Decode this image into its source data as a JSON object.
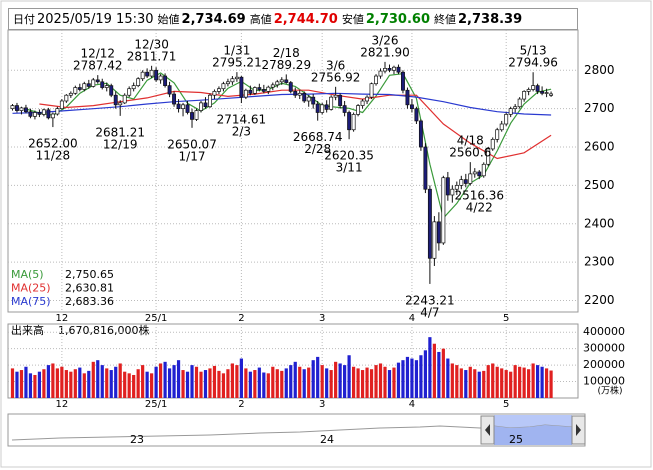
{
  "header": {
    "date_label": "日付",
    "date": "2025/05/19 15:30",
    "fields": [
      {
        "label": "始値",
        "value": "2,734.69",
        "color": "#000000"
      },
      {
        "label": "高値",
        "value": "2,744.70",
        "color": "#e00000"
      },
      {
        "label": "安値",
        "value": "2,730.60",
        "color": "#008000"
      },
      {
        "label": "終値",
        "value": "2,738.39",
        "color": "#000000"
      }
    ]
  },
  "chart_data": {
    "type": "candlestick",
    "xlim": [
      -1,
      126
    ],
    "xticks": [
      {
        "value": 11,
        "label": "12"
      },
      {
        "value": 32,
        "label": "25/1"
      },
      {
        "value": 51,
        "label": "2"
      },
      {
        "value": 69,
        "label": "3"
      },
      {
        "value": 89,
        "label": "4"
      },
      {
        "value": 110,
        "label": "5"
      }
    ],
    "ylim": [
      2170,
      2905
    ],
    "yticks": [
      2200,
      2300,
      2400,
      2500,
      2600,
      2700,
      2800
    ],
    "grid": true,
    "up_color": "#ffffff",
    "down_color": "#1c1c78",
    "open": [
      2700,
      2708,
      2695,
      2702,
      2692,
      2680,
      2690,
      2685,
      2697,
      2676,
      2686,
      2700,
      2720,
      2735,
      2740,
      2755,
      2750,
      2765,
      2758,
      2775,
      2770,
      2755,
      2760,
      2735,
      2710,
      2715,
      2735,
      2752,
      2760,
      2778,
      2795,
      2785,
      2800,
      2775,
      2785,
      2760,
      2738,
      2712,
      2700,
      2710,
      2690,
      2672,
      2695,
      2715,
      2705,
      2735,
      2745,
      2752,
      2765,
      2770,
      2778,
      2782,
      2730,
      2748,
      2740,
      2755,
      2750,
      2745,
      2756,
      2762,
      2770,
      2775,
      2768,
      2745,
      2735,
      2740,
      2720,
      2730,
      2712,
      2690,
      2710,
      2698,
      2730,
      2735,
      2708,
      2690,
      2645,
      2685,
      2708,
      2720,
      2730,
      2765,
      2785,
      2798,
      2805,
      2800,
      2808,
      2795,
      2748,
      2710,
      2700,
      2668,
      2600,
      2490,
      2310,
      2405,
      2350,
      2520,
      2475,
      2490,
      2500,
      2515,
      2505,
      2530,
      2535,
      2525,
      2555,
      2595,
      2620,
      2645,
      2660,
      2685,
      2700,
      2705,
      2725,
      2745,
      2750,
      2760,
      2745,
      2740,
      2734.69
    ],
    "high": [
      2712,
      2715,
      2705,
      2710,
      2700,
      2695,
      2698,
      2700,
      2702,
      2690,
      2705,
      2725,
      2738,
      2745,
      2760,
      2765,
      2770,
      2775,
      2780,
      2787.42,
      2778,
      2768,
      2765,
      2745,
      2722,
      2740,
      2758,
      2768,
      2782,
      2800,
      2805,
      2811.71,
      2808,
      2790,
      2792,
      2770,
      2745,
      2725,
      2715,
      2720,
      2700,
      2700,
      2720,
      2730,
      2740,
      2750,
      2758,
      2770,
      2778,
      2785,
      2795.21,
      2785,
      2752,
      2760,
      2758,
      2765,
      2762,
      2760,
      2768,
      2775,
      2782,
      2789.29,
      2772,
      2755,
      2748,
      2745,
      2735,
      2738,
      2720,
      2715,
      2722,
      2735,
      2756.92,
      2740,
      2720,
      2695,
      2690,
      2712,
      2725,
      2735,
      2768,
      2790,
      2805,
      2821.9,
      2815,
      2812,
      2815,
      2800,
      2755,
      2725,
      2705,
      2672,
      2610,
      2500,
      2420,
      2430,
      2525,
      2535,
      2500,
      2510,
      2525,
      2530,
      2560.6,
      2545,
      2540,
      2560,
      2600,
      2625,
      2650,
      2668,
      2690,
      2705,
      2712,
      2730,
      2748,
      2755,
      2794.96,
      2765,
      2758,
      2752,
      2744.7
    ],
    "low": [
      2695,
      2690,
      2685,
      2688,
      2675,
      2672,
      2678,
      2680,
      2672,
      2652,
      2682,
      2698,
      2715,
      2728,
      2736,
      2745,
      2745,
      2752,
      2755,
      2765,
      2750,
      2745,
      2730,
      2700,
      2681.21,
      2712,
      2730,
      2745,
      2756,
      2772,
      2780,
      2780,
      2770,
      2765,
      2755,
      2730,
      2705,
      2690,
      2680,
      2685,
      2650.07,
      2668,
      2690,
      2700,
      2702,
      2725,
      2738,
      2745,
      2758,
      2762,
      2770,
      2714.61,
      2725,
      2735,
      2736,
      2745,
      2740,
      2738,
      2748,
      2755,
      2762,
      2765,
      2740,
      2728,
      2725,
      2715,
      2705,
      2700,
      2668.74,
      2685,
      2690,
      2695,
      2722,
      2700,
      2680,
      2620.35,
      2640,
      2680,
      2700,
      2712,
      2725,
      2760,
      2778,
      2792,
      2795,
      2790,
      2790,
      2740,
      2700,
      2690,
      2660,
      2590,
      2480,
      2243.21,
      2290,
      2330,
      2345,
      2460,
      2455,
      2475,
      2490,
      2495,
      2500,
      2520,
      2516.36,
      2520,
      2550,
      2590,
      2612,
      2640,
      2655,
      2678,
      2690,
      2700,
      2718,
      2735,
      2745,
      2738,
      2735,
      2730,
      2730.6
    ],
    "close": [
      2708,
      2695,
      2702,
      2692,
      2680,
      2690,
      2685,
      2697,
      2676,
      2686,
      2700,
      2720,
      2735,
      2740,
      2755,
      2750,
      2765,
      2758,
      2775,
      2770,
      2755,
      2760,
      2735,
      2710,
      2715,
      2735,
      2752,
      2760,
      2778,
      2795,
      2785,
      2800,
      2775,
      2785,
      2760,
      2738,
      2712,
      2700,
      2710,
      2690,
      2672,
      2695,
      2715,
      2705,
      2735,
      2745,
      2752,
      2765,
      2770,
      2778,
      2782,
      2730,
      2748,
      2740,
      2755,
      2750,
      2745,
      2756,
      2762,
      2770,
      2775,
      2768,
      2745,
      2735,
      2740,
      2720,
      2730,
      2712,
      2690,
      2710,
      2698,
      2730,
      2735,
      2708,
      2690,
      2645,
      2685,
      2708,
      2720,
      2730,
      2765,
      2785,
      2798,
      2805,
      2800,
      2808,
      2795,
      2748,
      2710,
      2700,
      2668,
      2600,
      2490,
      2310,
      2405,
      2350,
      2520,
      2475,
      2490,
      2500,
      2515,
      2505,
      2530,
      2535,
      2525,
      2555,
      2595,
      2620,
      2645,
      2660,
      2685,
      2700,
      2705,
      2725,
      2745,
      2750,
      2760,
      2745,
      2740,
      2742,
      2738.39
    ],
    "series": [
      {
        "name": "MA(5)",
        "legend_value": "2,750.65",
        "color": "#3a9a3a",
        "x": [
          3,
          6,
          9,
          12,
          15,
          18,
          21,
          24,
          27,
          30,
          33,
          36,
          39,
          42,
          45,
          48,
          51,
          54,
          57,
          60,
          63,
          66,
          69,
          72,
          75,
          78,
          81,
          84,
          87,
          90,
          93,
          96,
          99,
          102,
          105,
          108,
          111,
          114,
          117,
          120
        ],
        "values": [
          2699,
          2689,
          2683,
          2704,
          2740,
          2761,
          2766,
          2735,
          2725,
          2774,
          2793,
          2767,
          2714,
          2694,
          2715,
          2753,
          2771,
          2747,
          2750,
          2766,
          2758,
          2734,
          2708,
          2704,
          2701,
          2690,
          2733,
          2787,
          2791,
          2727,
          2555,
          2415,
          2453,
          2506,
          2527,
          2590,
          2662,
          2712,
          2743,
          2750.65
        ]
      },
      {
        "name": "MA(25)",
        "legend_value": "2,630.81",
        "color": "#e03030",
        "x": [
          6,
          12,
          18,
          24,
          30,
          36,
          42,
          48,
          54,
          60,
          66,
          72,
          78,
          84,
          90,
          96,
          102,
          108,
          114,
          120
        ],
        "values": [
          2712,
          2703,
          2708,
          2718,
          2728,
          2745,
          2742,
          2732,
          2738,
          2748,
          2748,
          2735,
          2725,
          2735,
          2735,
          2660,
          2610,
          2570,
          2585,
          2630.81
        ]
      },
      {
        "name": "MA(75)",
        "legend_value": "2,683.36",
        "color": "#2a3ad0",
        "x": [
          0,
          6,
          12,
          18,
          24,
          30,
          36,
          42,
          48,
          54,
          60,
          66,
          72,
          78,
          84,
          90,
          96,
          102,
          108,
          114,
          120
        ],
        "values": [
          2688,
          2690,
          2695,
          2700,
          2705,
          2712,
          2718,
          2722,
          2727,
          2732,
          2737,
          2738,
          2740,
          2738,
          2737,
          2730,
          2718,
          2703,
          2692,
          2686,
          2683.36
        ]
      }
    ],
    "annotations": [
      {
        "x": 9,
        "date": "11/28",
        "value": 2652,
        "label": "2652.00"
      },
      {
        "x": 19,
        "date": "12/12",
        "value": 2787.42
      },
      {
        "x": 24,
        "date": "12/19",
        "value": 2681.21
      },
      {
        "x": 31,
        "date": "12/30",
        "value": 2811.71
      },
      {
        "x": 40,
        "date": "1/17",
        "value": 2650.07
      },
      {
        "x": 50,
        "date": "1/31",
        "value": 2795.21
      },
      {
        "x": 51,
        "date": "2/3",
        "value": 2714.61
      },
      {
        "x": 61,
        "date": "2/18",
        "value": 2789.29
      },
      {
        "x": 68,
        "date": "2/28",
        "value": 2668.74
      },
      {
        "x": 72,
        "date": "3/6",
        "value": 2756.92
      },
      {
        "x": 75,
        "date": "3/11",
        "value": 2620.35
      },
      {
        "x": 83,
        "date": "3/26",
        "value": 2821.9,
        "label": "2821.90"
      },
      {
        "x": 93,
        "date": "4/7",
        "value": 2243.21
      },
      {
        "x": 102,
        "date": "4/18",
        "value": 2560.6
      },
      {
        "x": 104,
        "date": "4/22",
        "value": 2516.36
      },
      {
        "x": 116,
        "date": "5/13",
        "value": 2794.96
      }
    ],
    "volume": {
      "title": "出来高",
      "total": "1,670,816,000株",
      "unit": "(万株)",
      "ylim": [
        0,
        450000
      ],
      "yticks": [
        100000,
        200000,
        300000,
        400000
      ],
      "up_color": "#e02020",
      "down_color": "#2020d0",
      "values": [
        180000,
        160000,
        170000,
        190000,
        150000,
        140000,
        160000,
        175000,
        200000,
        210000,
        180000,
        190000,
        170000,
        160000,
        175000,
        185000,
        150000,
        165000,
        220000,
        230000,
        200000,
        180000,
        170000,
        190000,
        210000,
        160000,
        150000,
        140000,
        175000,
        200000,
        160000,
        150000,
        190000,
        210000,
        220000,
        180000,
        200000,
        230000,
        170000,
        160000,
        200000,
        190000,
        160000,
        170000,
        180000,
        195000,
        165000,
        150000,
        175000,
        210000,
        200000,
        240000,
        180000,
        160000,
        170000,
        185000,
        155000,
        150000,
        190000,
        175000,
        165000,
        180000,
        200000,
        220000,
        190000,
        175000,
        185000,
        230000,
        250000,
        200000,
        180000,
        170000,
        220000,
        210000,
        200000,
        260000,
        190000,
        180000,
        170000,
        185000,
        175000,
        200000,
        210000,
        190000,
        170000,
        185000,
        215000,
        230000,
        250000,
        240000,
        230000,
        260000,
        290000,
        370000,
        330000,
        280000,
        300000,
        240000,
        210000,
        200000,
        180000,
        170000,
        190000,
        175000,
        160000,
        165000,
        200000,
        210000,
        190000,
        180000,
        170000,
        160000,
        200000,
        190000,
        185000,
        175000,
        210000,
        200000,
        190000,
        180000,
        167081.6
      ]
    }
  },
  "navigator": {
    "labels": [
      "23",
      "24",
      "25"
    ]
  }
}
